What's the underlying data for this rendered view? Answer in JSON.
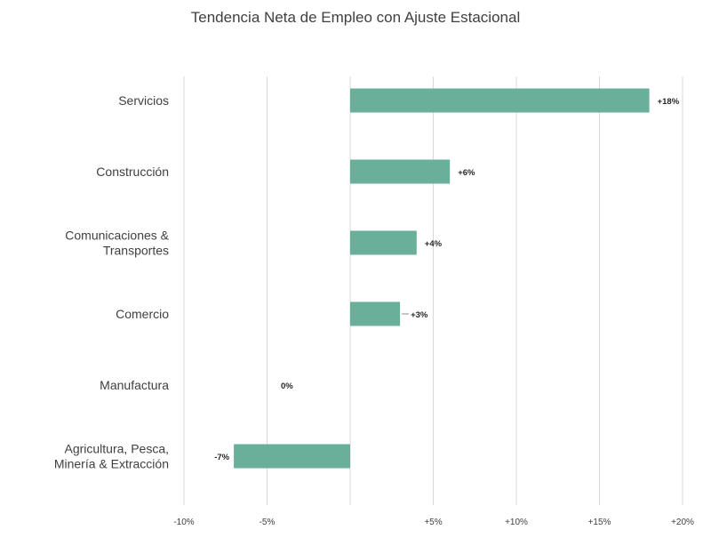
{
  "chart_data": {
    "type": "bar",
    "orientation": "horizontal",
    "title": "Tendencia Neta de Empleo con Ajuste Estacional",
    "categories": [
      [
        "Servicios"
      ],
      [
        "Construcción"
      ],
      [
        "Comunicaciones &",
        "Transportes"
      ],
      [
        "Comercio"
      ],
      [
        "Manufactura"
      ],
      [
        "Agricultura, Pesca,",
        "Minería & Extracción"
      ]
    ],
    "values": [
      18,
      6,
      4,
      3,
      0,
      -7
    ],
    "data_labels": [
      "+18%",
      "+6%",
      "+4%",
      "+3%",
      "0%",
      "-7%"
    ],
    "x_ticks": [
      -10,
      -5,
      0,
      5,
      10,
      15,
      20
    ],
    "x_tick_labels": [
      "-10%",
      "-5%",
      "",
      "+5%",
      "+10%",
      "+15%",
      "+20%"
    ],
    "xlim": [
      -10,
      20
    ],
    "xlabel": "",
    "ylabel": "",
    "grid": "vertical",
    "legend": "none",
    "bar_color": "#6aaf9a",
    "gridline_color": "#d9d9d9"
  }
}
